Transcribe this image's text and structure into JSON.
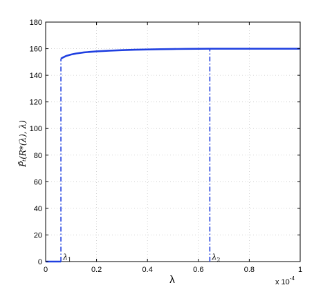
{
  "chart_data": {
    "type": "line",
    "xlabel": "λ",
    "ylabel": "P̄ₜ(R*(λ), λ)",
    "x_multiplier_label": "x 10",
    "x_multiplier_exponent": "-4",
    "xlim": [
      0,
      1
    ],
    "ylim": [
      0,
      180
    ],
    "x_ticks": [
      0,
      0.2,
      0.4,
      0.6,
      0.8,
      1
    ],
    "x_tick_labels": [
      "0",
      "0.2",
      "0.4",
      "0.6",
      "0.8",
      "1"
    ],
    "y_ticks": [
      0,
      20,
      40,
      60,
      80,
      100,
      120,
      140,
      160,
      180
    ],
    "y_tick_labels": [
      "0",
      "20",
      "40",
      "60",
      "80",
      "100",
      "120",
      "140",
      "160",
      "180"
    ],
    "grid": true,
    "color": "#1f3fe0",
    "series": [
      {
        "style": "solid",
        "x": [
          0,
          0.06
        ],
        "y": [
          0,
          0
        ]
      },
      {
        "style": "solid",
        "x": [
          0.06,
          0.07,
          0.08,
          0.1,
          0.12,
          0.15,
          0.2,
          0.25,
          0.3,
          0.35,
          0.4,
          0.45,
          0.5,
          0.55,
          0.6,
          0.645
        ],
        "y": [
          152.5,
          153.6,
          154.5,
          155.6,
          156.4,
          157.2,
          158.0,
          158.5,
          158.9,
          159.2,
          159.4,
          159.6,
          159.75,
          159.85,
          159.95,
          160
        ]
      },
      {
        "style": "solid",
        "x": [
          0.645,
          1.0
        ],
        "y": [
          160,
          160
        ]
      }
    ],
    "vlines": [
      {
        "x": 0.06,
        "y_top": 152.5,
        "style": "dash-dot"
      },
      {
        "x": 0.645,
        "y_top": 160,
        "style": "dash-dot"
      }
    ],
    "annotations": [
      {
        "symbol": "λ",
        "sub": "1",
        "x": 0.06,
        "y": 0
      },
      {
        "symbol": "λ",
        "sub": "2",
        "x": 0.645,
        "y": 0
      }
    ]
  }
}
